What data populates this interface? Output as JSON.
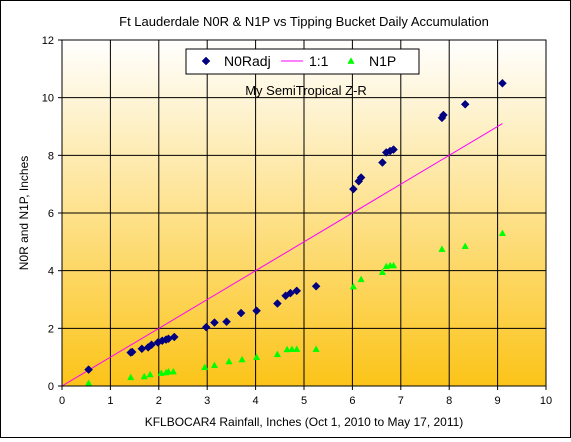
{
  "chart_data": {
    "type": "scatter",
    "title": "Ft Lauderdale N0R & N1P vs Tipping Bucket Daily Accumulation",
    "subtitle": "My SemiTropical Z-R",
    "xlabel": "KFLBOCAR4 Rainfall, Inches (Oct 1, 2010 to May 17, 2011)",
    "ylabel": "N0R and N1P, Inches",
    "xlim": [
      0,
      10
    ],
    "ylim": [
      0,
      12
    ],
    "xticks": [
      "0",
      "1",
      "2",
      "3",
      "4",
      "5",
      "6",
      "7",
      "8",
      "9",
      "10"
    ],
    "yticks": [
      "0",
      "2",
      "4",
      "6",
      "8",
      "10",
      "12"
    ],
    "grid": true,
    "legend_position": "top-center",
    "background_gradient": [
      "#ffffff",
      "#fcc419"
    ],
    "series": [
      {
        "name": "N0Radj",
        "marker": "diamond",
        "color": "#000080",
        "points": [
          [
            0.55,
            0.57
          ],
          [
            1.42,
            1.16
          ],
          [
            1.45,
            1.18
          ],
          [
            1.65,
            1.29
          ],
          [
            1.78,
            1.34
          ],
          [
            1.85,
            1.43
          ],
          [
            1.98,
            1.51
          ],
          [
            2.07,
            1.57
          ],
          [
            2.15,
            1.61
          ],
          [
            2.2,
            1.64
          ],
          [
            2.32,
            1.7
          ],
          [
            2.98,
            2.04
          ],
          [
            3.15,
            2.2
          ],
          [
            3.4,
            2.23
          ],
          [
            3.7,
            2.53
          ],
          [
            4.02,
            2.61
          ],
          [
            4.45,
            2.86
          ],
          [
            4.62,
            3.13
          ],
          [
            4.72,
            3.22
          ],
          [
            4.85,
            3.3
          ],
          [
            5.25,
            3.46
          ],
          [
            6.02,
            6.83
          ],
          [
            6.13,
            7.1
          ],
          [
            6.18,
            7.23
          ],
          [
            6.62,
            7.75
          ],
          [
            6.7,
            8.1
          ],
          [
            6.78,
            8.15
          ],
          [
            6.85,
            8.2
          ],
          [
            7.85,
            9.3
          ],
          [
            7.88,
            9.4
          ],
          [
            8.33,
            9.77
          ],
          [
            9.1,
            10.5
          ]
        ]
      },
      {
        "name": "1:1",
        "marker": "line",
        "color": "#ff00ff",
        "points": [
          [
            0,
            0
          ],
          [
            9.1,
            9.1
          ]
        ]
      },
      {
        "name": "N1P",
        "marker": "triangle",
        "color": "#00ff00",
        "points": [
          [
            0.55,
            0.1
          ],
          [
            1.42,
            0.3
          ],
          [
            1.7,
            0.33
          ],
          [
            1.82,
            0.4
          ],
          [
            2.05,
            0.45
          ],
          [
            2.15,
            0.47
          ],
          [
            2.2,
            0.5
          ],
          [
            2.3,
            0.5
          ],
          [
            2.95,
            0.65
          ],
          [
            3.15,
            0.72
          ],
          [
            3.45,
            0.85
          ],
          [
            3.72,
            0.92
          ],
          [
            4.02,
            1.0
          ],
          [
            4.45,
            1.1
          ],
          [
            4.65,
            1.27
          ],
          [
            4.75,
            1.28
          ],
          [
            4.85,
            1.28
          ],
          [
            5.25,
            1.28
          ],
          [
            6.02,
            3.45
          ],
          [
            6.18,
            3.7
          ],
          [
            6.62,
            3.95
          ],
          [
            6.7,
            4.15
          ],
          [
            6.78,
            4.18
          ],
          [
            6.85,
            4.18
          ],
          [
            7.85,
            4.75
          ],
          [
            8.33,
            4.85
          ],
          [
            9.1,
            5.3
          ]
        ]
      }
    ]
  }
}
